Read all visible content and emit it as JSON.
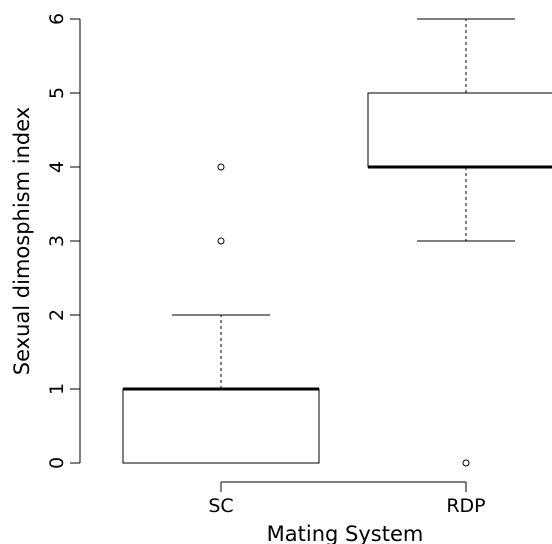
{
  "chart_data": {
    "type": "boxplot",
    "title": "",
    "xlabel": "Mating System",
    "ylabel": "Sexual dimosphism index",
    "ylim": [
      0,
      6
    ],
    "yticks": [
      0,
      1,
      2,
      3,
      4,
      5,
      6
    ],
    "grid": false,
    "categories": [
      "SC",
      "RDP"
    ],
    "boxes": [
      {
        "category": "SC",
        "whisker_low": 0,
        "q1": 0,
        "median": 1,
        "q3": 1,
        "whisker_high": 2,
        "outliers": [
          3,
          4
        ]
      },
      {
        "category": "RDP",
        "whisker_low": 3,
        "q1": 4,
        "median": 4,
        "q3": 5,
        "whisker_high": 6,
        "outliers": [
          0
        ]
      }
    ]
  }
}
